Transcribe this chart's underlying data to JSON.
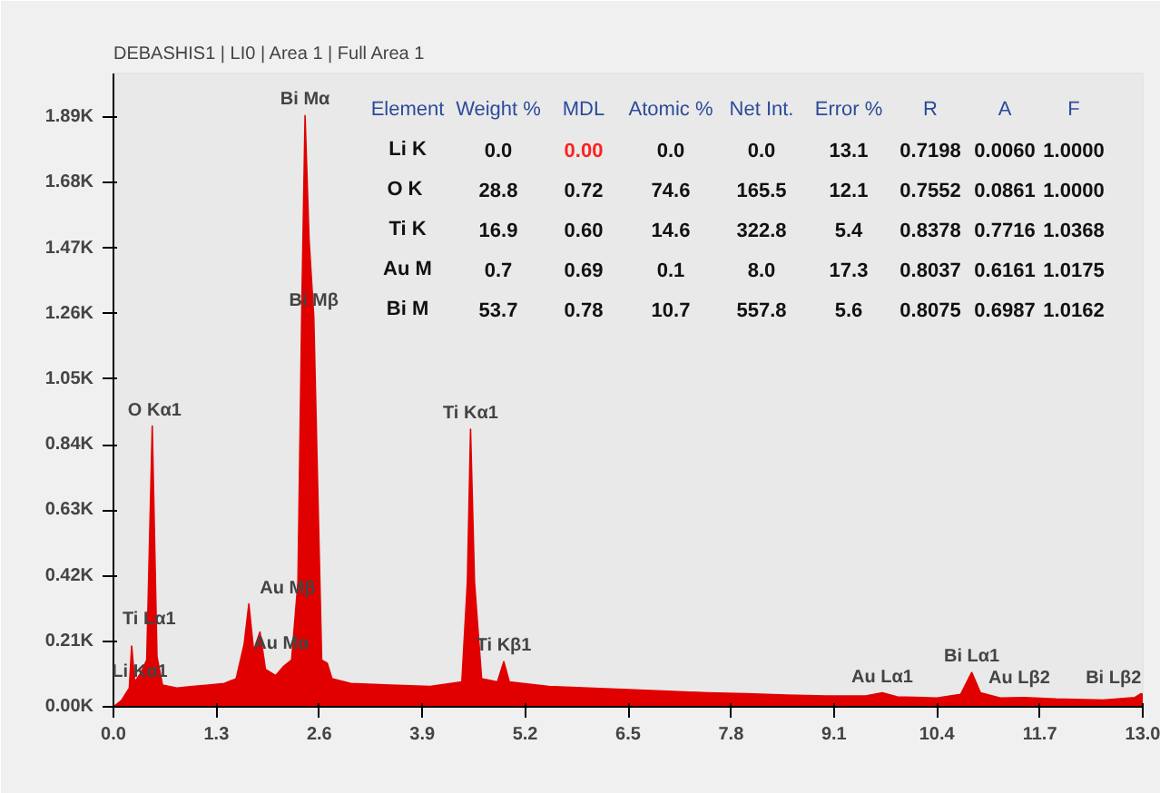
{
  "chart_data": {
    "type": "area",
    "title": "DEBASHIS1 | LI0 | Area 1 | Full Area 1",
    "x": [
      0.0,
      0.1,
      0.2,
      0.23,
      0.27,
      0.35,
      0.42,
      0.49,
      0.55,
      0.62,
      0.8,
      1.0,
      1.2,
      1.4,
      1.55,
      1.65,
      1.71,
      1.77,
      1.85,
      1.92,
      2.05,
      2.15,
      2.25,
      2.33,
      2.38,
      2.42,
      2.47,
      2.53,
      2.58,
      2.63,
      2.7,
      2.76,
      3.0,
      3.5,
      4.0,
      4.4,
      4.47,
      4.51,
      4.56,
      4.65,
      4.85,
      4.93,
      5.0,
      5.5,
      6.0,
      6.5,
      7.0,
      7.5,
      8.0,
      8.5,
      9.0,
      9.5,
      9.71,
      9.9,
      10.4,
      10.7,
      10.84,
      10.95,
      11.2,
      11.5,
      11.9,
      12.5,
      12.9,
      12.98,
      13.0
    ],
    "series": [
      {
        "color": "#e00000",
        "values": [
          0,
          20,
          60,
          195,
          80,
          110,
          150,
          900,
          160,
          70,
          60,
          65,
          70,
          75,
          90,
          200,
          330,
          180,
          240,
          120,
          100,
          130,
          150,
          400,
          1300,
          1895,
          1500,
          1250,
          700,
          150,
          140,
          90,
          75,
          70,
          65,
          80,
          400,
          890,
          400,
          90,
          80,
          145,
          80,
          65,
          60,
          55,
          50,
          45,
          42,
          38,
          35,
          35,
          45,
          32,
          28,
          40,
          110,
          45,
          28,
          30,
          25,
          22,
          30,
          42,
          40
        ]
      }
    ],
    "xlim": [
      0,
      13.0
    ],
    "ylim": [
      0,
      2030
    ],
    "xticks": [
      {
        "value": 0,
        "label": "0.0"
      },
      1.3,
      2.6,
      3.9,
      5.2,
      6.5,
      7.8,
      9.1,
      10.4,
      11.7,
      {
        "value": 13,
        "label": "13.0"
      }
    ],
    "yticks": [
      {
        "value": 0,
        "label": "0.00K"
      },
      {
        "value": 210,
        "label": "0.21K"
      },
      {
        "value": 420,
        "label": "0.42K"
      },
      {
        "value": 630,
        "label": "0.63K"
      },
      {
        "value": 840,
        "label": "0.84K"
      },
      {
        "value": 1050,
        "label": "1.05K"
      },
      {
        "value": 1260,
        "label": "1.26K"
      },
      {
        "value": 1470,
        "label": "1.47K"
      },
      {
        "value": 1680,
        "label": "1.68K"
      },
      {
        "value": 1890,
        "label": "1.89K"
      }
    ],
    "annotations": [
      {
        "text": "Li Kα1",
        "x": 0.05,
        "y": 60
      },
      {
        "text": "Ti Lα1",
        "x": 0.45,
        "y": 230
      },
      {
        "text": "O Kα1",
        "x": 0.52,
        "y": 900
      },
      {
        "text": "Au Mα",
        "x": 2.12,
        "y": 150
      },
      {
        "text": "Au Mβ",
        "x": 2.2,
        "y": 330
      },
      {
        "text": "Bi Mα",
        "x": 2.42,
        "y": 1895
      },
      {
        "text": "Bi Mβ",
        "x": 2.53,
        "y": 1250
      },
      {
        "text": "Ti Kα1",
        "x": 4.51,
        "y": 890
      },
      {
        "text": "Ti Kβ1",
        "x": 4.93,
        "y": 145
      },
      {
        "text": "Au Lα1",
        "x": 9.71,
        "y": 45
      },
      {
        "text": "Bi Lα1",
        "x": 10.84,
        "y": 110
      },
      {
        "text": "Au Lβ2",
        "x": 11.44,
        "y": 40
      },
      {
        "text": "Bi Lβ2",
        "x": 12.98,
        "y": 42
      },
      "Element",
      "Weight %",
      "MDL",
      "Atomic %",
      "Net Int.",
      "Error %",
      "R",
      "A",
      "F",
      "Li K",
      "0.0",
      "0.00",
      "0.0",
      "0.0",
      "13.1",
      "0.7198",
      "0.0060",
      "1.0000",
      "O  K",
      "28.8",
      "0.72",
      "74.6",
      "165.5",
      "12.1",
      "0.7552",
      "0.0861",
      "1.0000",
      "Ti K",
      "16.9",
      "0.60",
      "14.6",
      "322.8",
      "5.4",
      "0.8378",
      "0.7716",
      "1.0368",
      "Au M",
      "0.7",
      "0.69",
      "0.1",
      "8.0",
      "17.3",
      "0.8037",
      "0.6161",
      "1.0175",
      "Bi M",
      "53.7",
      "0.78",
      "10.7",
      "557.8",
      "5.6",
      "0.8075",
      "0.6987",
      "1.0162"
    ]
  }
}
